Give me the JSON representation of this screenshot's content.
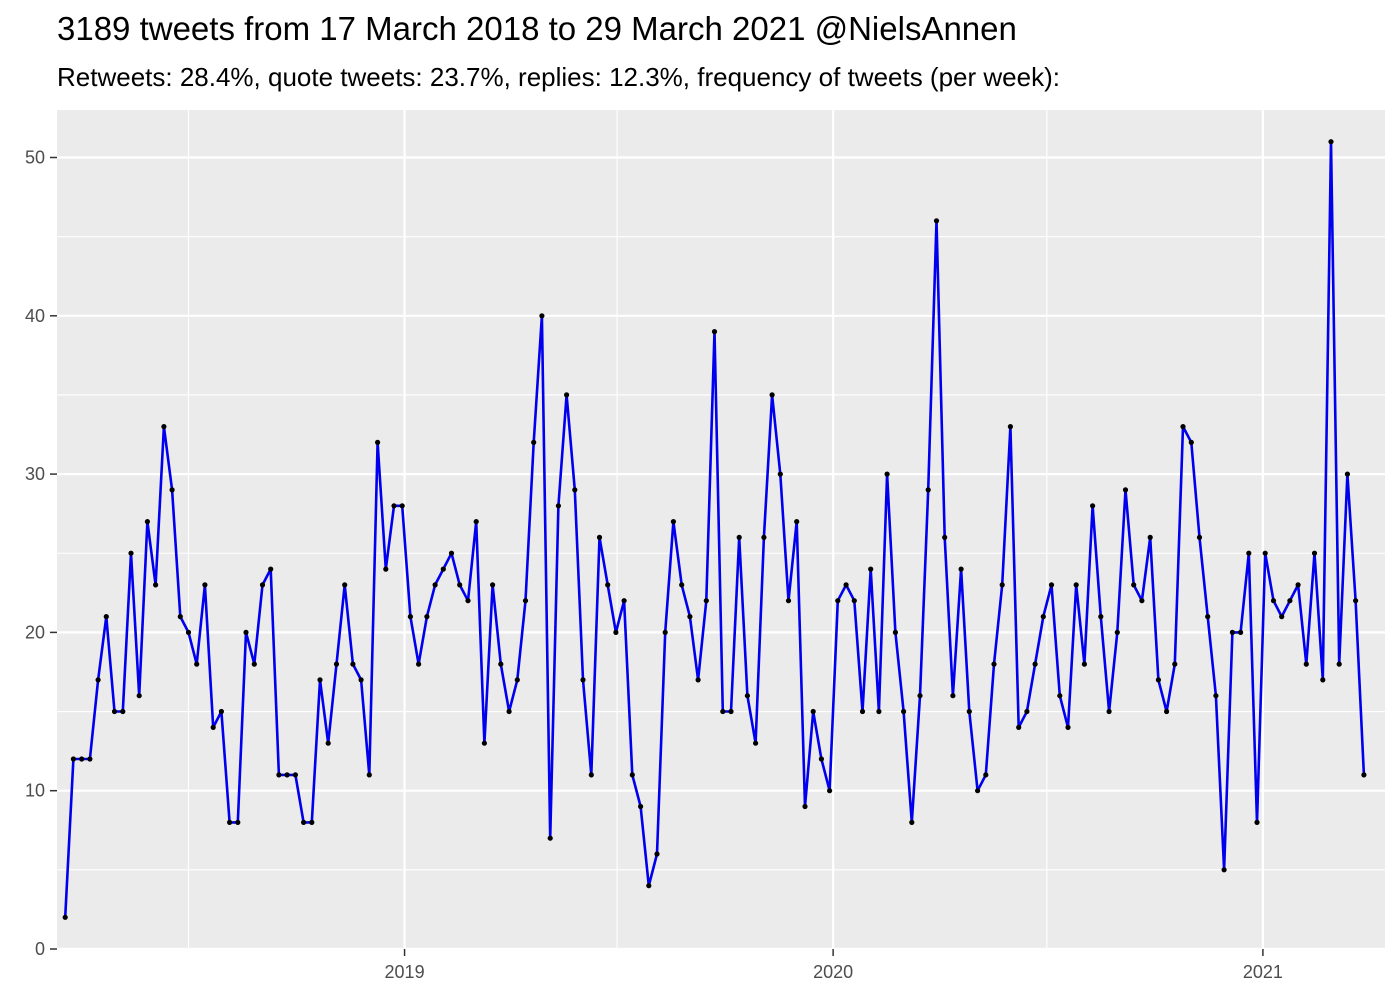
{
  "title": "3189 tweets from 17 March 2018 to 29 March 2021 @NielsAnnen",
  "subtitle": "Retweets: 28.4%, quote tweets: 23.7%, replies: 12.3%, frequency of tweets (per week):",
  "colors": {
    "panel": "#ebebeb",
    "grid": "#ffffff",
    "line": "#0000ee",
    "point": "#000000",
    "axis_text": "#4d4d4d"
  },
  "chart_data": {
    "type": "line",
    "title": "3189 tweets from 17 March 2018 to 29 March 2021 @NielsAnnen",
    "subtitle": "Retweets: 28.4%, quote tweets: 23.7%, replies: 12.3%, frequency of tweets (per week):",
    "xlabel": "",
    "ylabel": "",
    "x_tick_labels": [
      "2019",
      "2020",
      "2021"
    ],
    "y_ticks": [
      0,
      10,
      20,
      30,
      40,
      50
    ],
    "xlim": [
      "2018-03-11",
      "2021-04-15"
    ],
    "ylim": [
      0,
      53
    ],
    "grid": true,
    "legend": "none",
    "series": [
      {
        "x": [
          "2018-03-18",
          "2018-03-25",
          "2018-04-01",
          "2018-04-08",
          "2018-04-15",
          "2018-04-22",
          "2018-04-29",
          "2018-05-06",
          "2018-05-13",
          "2018-05-20",
          "2018-05-27",
          "2018-06-03",
          "2018-06-10",
          "2018-06-17",
          "2018-06-24",
          "2018-07-01",
          "2018-07-08",
          "2018-07-15",
          "2018-07-22",
          "2018-07-29",
          "2018-08-05",
          "2018-08-12",
          "2018-08-19",
          "2018-08-26",
          "2018-09-02",
          "2018-09-09",
          "2018-09-16",
          "2018-09-23",
          "2018-09-30",
          "2018-10-07",
          "2018-10-14",
          "2018-10-21",
          "2018-10-28",
          "2018-11-04",
          "2018-11-11",
          "2018-11-18",
          "2018-11-25",
          "2018-12-02",
          "2018-12-09",
          "2018-12-16",
          "2018-12-23",
          "2018-12-30",
          "2019-01-06",
          "2019-01-13",
          "2019-01-20",
          "2019-01-27",
          "2019-02-03",
          "2019-02-10",
          "2019-02-17",
          "2019-02-24",
          "2019-03-03",
          "2019-03-10",
          "2019-03-17",
          "2019-03-24",
          "2019-03-31",
          "2019-04-07",
          "2019-04-14",
          "2019-04-21",
          "2019-04-28",
          "2019-05-05",
          "2019-05-12",
          "2019-05-19",
          "2019-05-26",
          "2019-06-02",
          "2019-06-09",
          "2019-06-16",
          "2019-06-23",
          "2019-06-30",
          "2019-07-07",
          "2019-07-14",
          "2019-07-21",
          "2019-07-28",
          "2019-08-04",
          "2019-08-11",
          "2019-08-18",
          "2019-08-25",
          "2019-09-01",
          "2019-09-08",
          "2019-09-15",
          "2019-09-22",
          "2019-09-29",
          "2019-10-06",
          "2019-10-13",
          "2019-10-20",
          "2019-10-27",
          "2019-11-03",
          "2019-11-10",
          "2019-11-17",
          "2019-11-24",
          "2019-12-01",
          "2019-12-08",
          "2019-12-15",
          "2019-12-22",
          "2019-12-29",
          "2020-01-05",
          "2020-01-12",
          "2020-01-19",
          "2020-01-26",
          "2020-02-02",
          "2020-02-09",
          "2020-02-16",
          "2020-02-23",
          "2020-03-01",
          "2020-03-08",
          "2020-03-15",
          "2020-03-22",
          "2020-03-29",
          "2020-04-05",
          "2020-04-12",
          "2020-04-19",
          "2020-04-26",
          "2020-05-03",
          "2020-05-10",
          "2020-05-17",
          "2020-05-24",
          "2020-05-31",
          "2020-06-07",
          "2020-06-14",
          "2020-06-21",
          "2020-06-28",
          "2020-07-05",
          "2020-07-12",
          "2020-07-19",
          "2020-07-26",
          "2020-08-02",
          "2020-08-09",
          "2020-08-16",
          "2020-08-23",
          "2020-08-30",
          "2020-09-06",
          "2020-09-13",
          "2020-09-20",
          "2020-09-27",
          "2020-10-04",
          "2020-10-11",
          "2020-10-18",
          "2020-10-25",
          "2020-11-01",
          "2020-11-08",
          "2020-11-15",
          "2020-11-22",
          "2020-11-29",
          "2020-12-06",
          "2020-12-13",
          "2020-12-20",
          "2020-12-27",
          "2021-01-03",
          "2021-01-10",
          "2021-01-17",
          "2021-01-24",
          "2021-01-31",
          "2021-02-07",
          "2021-02-14",
          "2021-02-21",
          "2021-02-28",
          "2021-03-07",
          "2021-03-14",
          "2021-03-21",
          "2021-03-28"
        ],
        "values": [
          2,
          12,
          12,
          12,
          17,
          21,
          15,
          15,
          25,
          16,
          27,
          23,
          33,
          29,
          21,
          20,
          18,
          23,
          14,
          15,
          8,
          8,
          20,
          18,
          23,
          24,
          11,
          11,
          11,
          8,
          8,
          17,
          13,
          18,
          23,
          18,
          17,
          11,
          32,
          24,
          28,
          28,
          21,
          18,
          21,
          23,
          24,
          25,
          23,
          22,
          27,
          13,
          23,
          18,
          15,
          17,
          22,
          32,
          40,
          7,
          28,
          35,
          29,
          17,
          11,
          26,
          23,
          20,
          22,
          11,
          9,
          4,
          6,
          20,
          27,
          23,
          21,
          17,
          22,
          39,
          15,
          15,
          26,
          16,
          13,
          26,
          35,
          30,
          22,
          27,
          9,
          15,
          12,
          10,
          22,
          23,
          22,
          15,
          24,
          15,
          30,
          20,
          15,
          8,
          16,
          29,
          46,
          26,
          16,
          24,
          15,
          10,
          11,
          18,
          23,
          33,
          14,
          15,
          18,
          21,
          23,
          16,
          14,
          23,
          18,
          28,
          21,
          15,
          20,
          29,
          23,
          22,
          26,
          17,
          15,
          18,
          33,
          32,
          26,
          21,
          16,
          5,
          20,
          20,
          25,
          8,
          25,
          22,
          21,
          22,
          23,
          18,
          25,
          17,
          51,
          18,
          30,
          22,
          11
        ]
      }
    ]
  }
}
